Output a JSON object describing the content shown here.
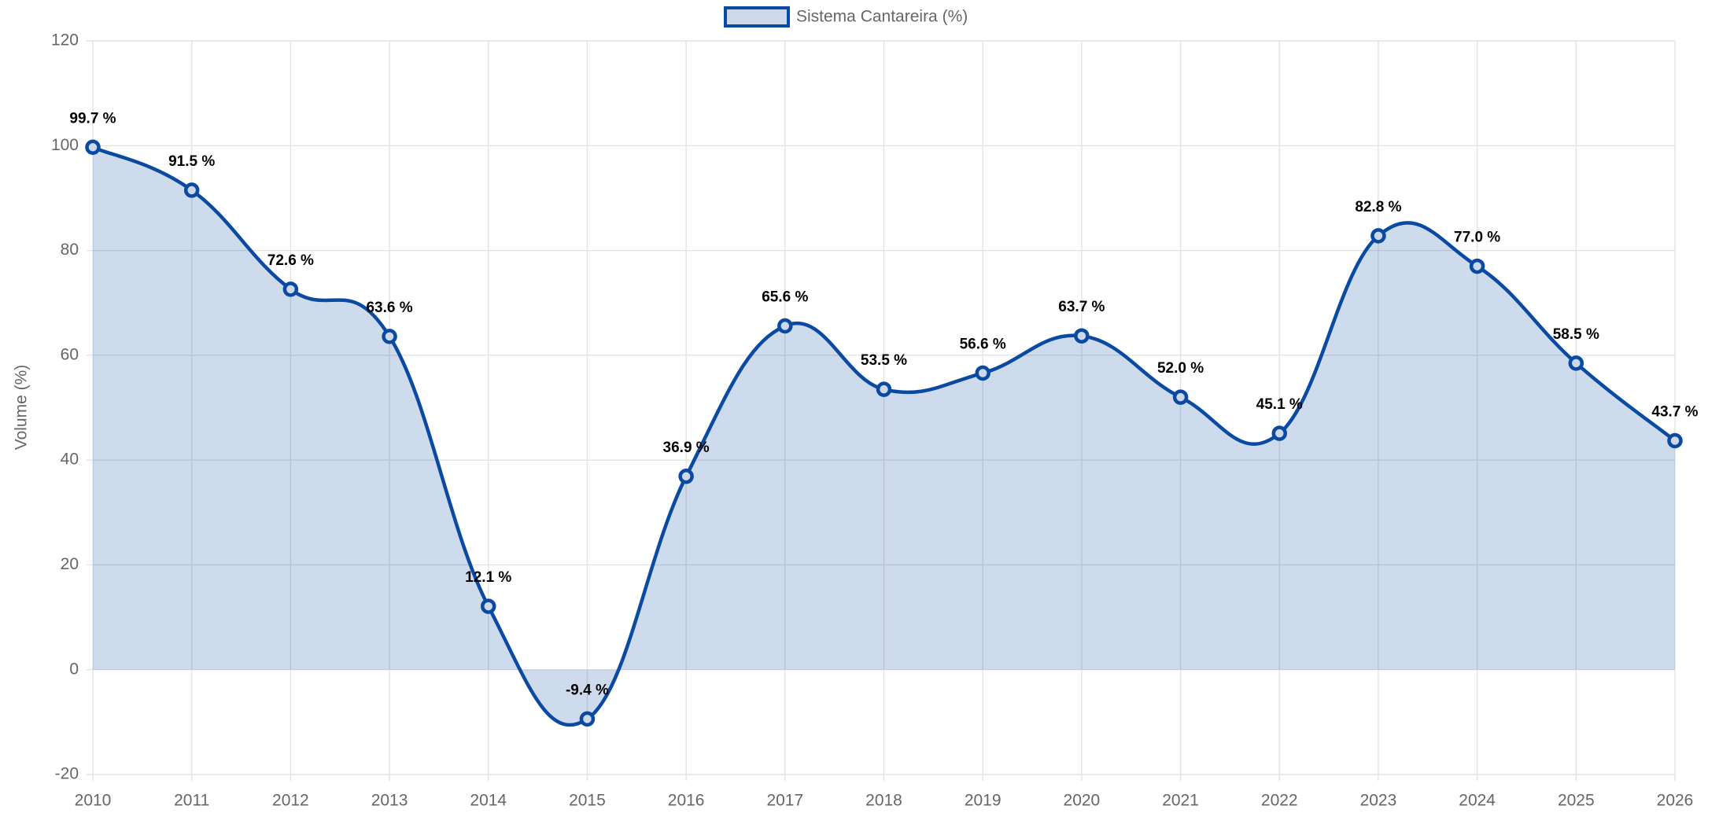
{
  "chart_data": {
    "type": "line",
    "categories": [
      "2010",
      "2011",
      "2012",
      "2013",
      "2014",
      "2015",
      "2016",
      "2017",
      "2018",
      "2019",
      "2020",
      "2021",
      "2022",
      "2023",
      "2024",
      "2025",
      "2026"
    ],
    "series": [
      {
        "name": "Sistema Cantareira (%)",
        "color": "#0b4aa2",
        "values": [
          99.7,
          91.5,
          72.6,
          63.6,
          12.1,
          -9.4,
          36.9,
          65.6,
          53.5,
          56.6,
          63.7,
          52.0,
          45.1,
          82.8,
          77.0,
          58.5,
          43.7
        ],
        "value_labels": [
          "99.7 %",
          "91.5 %",
          "72.6 %",
          "63.6 %",
          "12.1 %",
          "-9.4 %",
          "36.9 %",
          "65.6 %",
          "53.5 %",
          "56.6 %",
          "63.7 %",
          "52.0 %",
          "45.1 %",
          "82.8 %",
          "77.0 %",
          "58.5 %",
          "43.7 %"
        ]
      }
    ],
    "y_label": "Volume (%)",
    "ylim": [
      -20,
      120
    ],
    "yticks": [
      -20,
      0,
      20,
      40,
      60,
      80,
      100,
      120
    ],
    "grid": true,
    "fill": "origin",
    "legend": "top"
  }
}
